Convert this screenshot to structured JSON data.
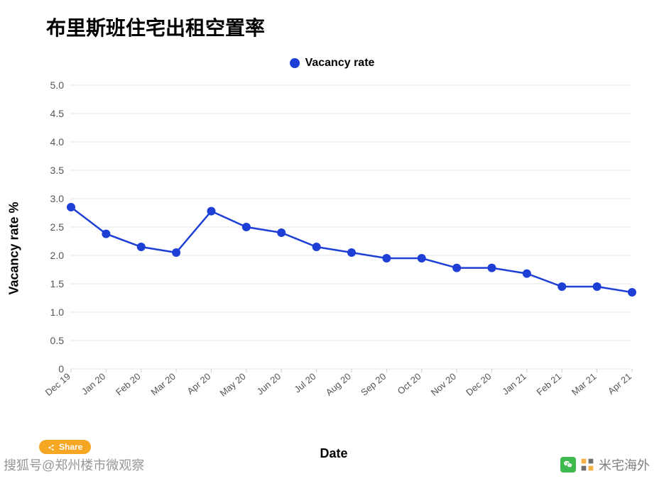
{
  "title": "布里斯班住宅出租空置率",
  "legend_label": "Vacancy rate",
  "xlabel": "Date",
  "ylabel": "Vacancy rate %",
  "share_label": "Share",
  "watermark_left": "搜狐号@郑州楼市微观察",
  "watermark_right_text": "米宅海外",
  "chart": {
    "type": "line",
    "line_color": "#1d3fd6",
    "marker_color": "#1d3fd6",
    "marker_radius": 6,
    "line_width": 2.5,
    "background_color": "#ffffff",
    "grid_color": "#e6e6e6",
    "axis_color": "#cccccc",
    "tick_color": "#555555",
    "ylim": [
      0,
      5.0
    ],
    "ytick_step": 0.5,
    "yticks": [
      0,
      0.5,
      1.0,
      1.5,
      2.0,
      2.5,
      3.0,
      3.5,
      4.0,
      4.5,
      5.0
    ],
    "categories": [
      "Dec 19",
      "Jan 20",
      "Feb 20",
      "Mar 20",
      "Apr 20",
      "May 20",
      "Jun 20",
      "Jul 20",
      "Aug 20",
      "Sep 20",
      "Oct 20",
      "Nov 20",
      "Dec 20",
      "Jan 21",
      "Feb 21",
      "Mar 21",
      "Apr 21"
    ],
    "values": [
      2.85,
      2.38,
      2.15,
      2.05,
      2.78,
      2.5,
      2.4,
      2.15,
      2.05,
      1.95,
      1.95,
      1.78,
      1.78,
      1.68,
      1.45,
      1.45,
      1.35
    ],
    "title_fontsize": 28,
    "label_fontsize": 18,
    "tick_fontsize": 14,
    "legend_fontsize": 16
  },
  "colors": {
    "share_bg": "#f5a623",
    "share_text": "#ffffff",
    "wechat_badge": "#3eb94e",
    "brand_accent": "#f5a623"
  }
}
